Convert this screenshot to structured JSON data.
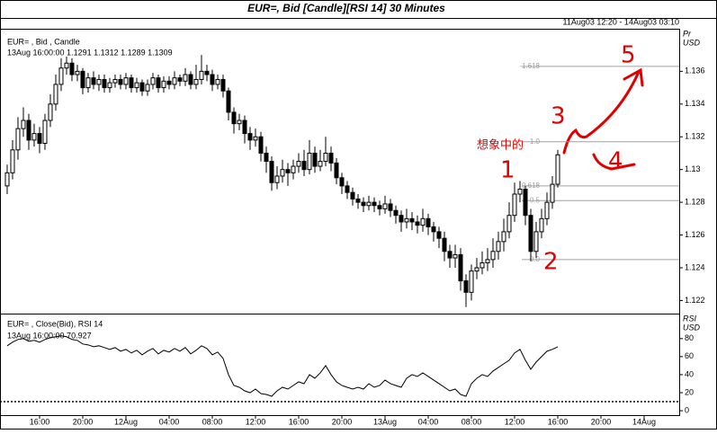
{
  "chart_data": [
    {
      "type": "candlestick",
      "title": "EUR=, Bid [Candle][RSI 14] 30 Minutes",
      "subtitle": "11Aug03 12:20 - 14Aug03 03:10",
      "legend_title": "EUR= , Bid , Candle",
      "legend_values": "13Aug 16:00:00 1.1291 1.1312 1.1289 1.1309",
      "y_label": "Pr",
      "y_unit": "USD",
      "xlim": [
        -1.33,
        124.5
      ],
      "ylim": [
        1.1212,
        1.1386
      ],
      "yticks": [
        1.122,
        1.124,
        1.126,
        1.128,
        1.13,
        1.132,
        1.134,
        1.136
      ],
      "up_color": "#ffffff",
      "down_color": "#000000",
      "open": [
        1.129,
        1.1298,
        1.1312,
        1.1325,
        1.133,
        1.1318,
        1.1322,
        1.1316,
        1.133,
        1.134,
        1.1352,
        1.1362,
        1.1365,
        1.1358,
        1.136,
        1.135,
        1.1356,
        1.1352,
        1.1355,
        1.135,
        1.1353,
        1.1355,
        1.1352,
        1.1356,
        1.135,
        1.1353,
        1.1348,
        1.1352,
        1.1356,
        1.135,
        1.1354,
        1.1352,
        1.1356,
        1.1354,
        1.1358,
        1.1352,
        1.1355,
        1.136,
        1.1358,
        1.1352,
        1.1355,
        1.1348,
        1.1335,
        1.1328,
        1.133,
        1.1322,
        1.1318,
        1.132,
        1.131,
        1.1305,
        1.1292,
        1.1296,
        1.13,
        1.1298,
        1.1302,
        1.1305,
        1.13,
        1.131,
        1.1302,
        1.1305,
        1.131,
        1.1304,
        1.1295,
        1.129,
        1.1286,
        1.1282,
        1.128,
        1.1278,
        1.128,
        1.1278,
        1.1276,
        1.1279,
        1.1275,
        1.1272,
        1.1268,
        1.127,
        1.1268,
        1.1266,
        1.127,
        1.1265,
        1.1262,
        1.1258,
        1.125,
        1.1246,
        1.1248,
        1.1232,
        1.1225,
        1.1238,
        1.124,
        1.1243,
        1.1245,
        1.125,
        1.1256,
        1.1262,
        1.1272,
        1.1285,
        1.1288,
        1.1272,
        1.125,
        1.1262,
        1.127,
        1.128,
        1.1291
      ],
      "high": [
        1.1303,
        1.1318,
        1.1332,
        1.1338,
        1.1334,
        1.1328,
        1.1326,
        1.1334,
        1.1346,
        1.1358,
        1.1368,
        1.1369,
        1.1368,
        1.1364,
        1.1362,
        1.1359,
        1.136,
        1.1358,
        1.1358,
        1.1356,
        1.1358,
        1.1358,
        1.1359,
        1.1358,
        1.1356,
        1.1355,
        1.1355,
        1.1359,
        1.1358,
        1.1357,
        1.1357,
        1.136,
        1.1358,
        1.1362,
        1.136,
        1.1364,
        1.137,
        1.1364,
        1.1361,
        1.1358,
        1.1358,
        1.135,
        1.1338,
        1.1334,
        1.1333,
        1.1326,
        1.1325,
        1.1323,
        1.1314,
        1.1308,
        1.1302,
        1.1306,
        1.1304,
        1.1306,
        1.131,
        1.1312,
        1.1318,
        1.1314,
        1.1312,
        1.132,
        1.1314,
        1.1307,
        1.1298,
        1.1293,
        1.1289,
        1.1285,
        1.1283,
        1.1284,
        1.1283,
        1.1281,
        1.1284,
        1.1282,
        1.1278,
        1.1275,
        1.1276,
        1.1274,
        1.1272,
        1.1276,
        1.1273,
        1.1268,
        1.1265,
        1.1262,
        1.1254,
        1.1254,
        1.1252,
        1.1236,
        1.1242,
        1.1246,
        1.125,
        1.1252,
        1.1258,
        1.1262,
        1.127,
        1.128,
        1.1292,
        1.1293,
        1.129,
        1.1276,
        1.1268,
        1.1276,
        1.1286,
        1.1296,
        1.1312
      ],
      "low": [
        1.1285,
        1.1294,
        1.1306,
        1.132,
        1.1312,
        1.1314,
        1.131,
        1.1312,
        1.1326,
        1.1336,
        1.1348,
        1.1358,
        1.1354,
        1.1354,
        1.1346,
        1.1347,
        1.1349,
        1.1348,
        1.1347,
        1.1347,
        1.135,
        1.1349,
        1.1349,
        1.1347,
        1.1347,
        1.1345,
        1.1345,
        1.1349,
        1.1347,
        1.1347,
        1.1349,
        1.1349,
        1.1351,
        1.1351,
        1.1349,
        1.1349,
        1.1352,
        1.1354,
        1.1348,
        1.1349,
        1.1344,
        1.133,
        1.1322,
        1.1324,
        1.1316,
        1.1312,
        1.1314,
        1.1305,
        1.1298,
        1.1287,
        1.1288,
        1.1292,
        1.129,
        1.1294,
        1.1298,
        1.1296,
        1.1297,
        1.1298,
        1.1299,
        1.1302,
        1.1299,
        1.1291,
        1.1285,
        1.1282,
        1.1278,
        1.1276,
        1.1274,
        1.1275,
        1.1274,
        1.1272,
        1.1273,
        1.1271,
        1.1267,
        1.1262,
        1.1264,
        1.1263,
        1.1261,
        1.1262,
        1.126,
        1.1256,
        1.1252,
        1.1244,
        1.124,
        1.124,
        1.1226,
        1.1216,
        1.122,
        1.1233,
        1.1236,
        1.1238,
        1.124,
        1.1245,
        1.125,
        1.1258,
        1.1268,
        1.128,
        1.1266,
        1.1244,
        1.1246,
        1.1258,
        1.1266,
        1.1276,
        1.1289
      ],
      "close": [
        1.1298,
        1.1312,
        1.1325,
        1.133,
        1.1318,
        1.1322,
        1.1316,
        1.133,
        1.134,
        1.1352,
        1.1362,
        1.1365,
        1.1358,
        1.136,
        1.135,
        1.1356,
        1.1352,
        1.1355,
        1.135,
        1.1353,
        1.1355,
        1.1352,
        1.1356,
        1.135,
        1.1353,
        1.1348,
        1.1352,
        1.1356,
        1.135,
        1.1354,
        1.1352,
        1.1356,
        1.1354,
        1.1358,
        1.1352,
        1.1355,
        1.136,
        1.1358,
        1.1352,
        1.1355,
        1.1348,
        1.1335,
        1.1328,
        1.133,
        1.1322,
        1.1318,
        1.132,
        1.131,
        1.1305,
        1.1292,
        1.1296,
        1.13,
        1.1298,
        1.1302,
        1.1305,
        1.13,
        1.131,
        1.1302,
        1.1305,
        1.131,
        1.1304,
        1.1295,
        1.129,
        1.1286,
        1.1282,
        1.128,
        1.1278,
        1.128,
        1.1278,
        1.1276,
        1.1279,
        1.1275,
        1.1272,
        1.1268,
        1.127,
        1.1268,
        1.1266,
        1.127,
        1.1265,
        1.1262,
        1.1258,
        1.125,
        1.1246,
        1.1248,
        1.1232,
        1.1225,
        1.1238,
        1.124,
        1.1243,
        1.1245,
        1.125,
        1.1256,
        1.1262,
        1.1272,
        1.1285,
        1.1288,
        1.1272,
        1.125,
        1.1262,
        1.127,
        1.128,
        1.1291,
        1.1309
      ],
      "levels": [
        {
          "value": 1.1363,
          "label": "-1.618"
        },
        {
          "value": 1.1317,
          "label": "1.0"
        },
        {
          "value": 1.129,
          "label": "0.618"
        },
        {
          "value": 1.1281,
          "label": "0.5"
        },
        {
          "value": 1.1245,
          "label": "0.0"
        }
      ],
      "level_color": "#a0a0a0",
      "annotations": [
        "想象中的",
        "1",
        "2",
        "3",
        "4",
        "5"
      ],
      "annotation_color": "#e00000"
    },
    {
      "type": "line",
      "legend_title": "EUR= , Close(Bid), RSI 14",
      "legend_values": "13Aug 16:00:00 70.927",
      "y_label": "RSI",
      "y_unit": "USD",
      "xlim": [
        -1.33,
        124.5
      ],
      "ylim": [
        -4.9,
        106.7
      ],
      "yticks": [
        0,
        20,
        40,
        60,
        80
      ],
      "reference_line": 10,
      "color": "#000000",
      "xticks": [
        {
          "value": 6,
          "label": "16:00"
        },
        {
          "value": 14,
          "label": "20:00"
        },
        {
          "value": 22,
          "label": "12Aug"
        },
        {
          "value": 30,
          "label": "04:00"
        },
        {
          "value": 38,
          "label": "08:00"
        },
        {
          "value": 46,
          "label": "12:00"
        },
        {
          "value": 54,
          "label": "16:00"
        },
        {
          "value": 62,
          "label": "20:00"
        },
        {
          "value": 70,
          "label": "13Aug"
        },
        {
          "value": 78,
          "label": "04:00"
        },
        {
          "value": 86,
          "label": "08:00"
        },
        {
          "value": 94,
          "label": "12:00"
        },
        {
          "value": 102,
          "label": "16:00"
        },
        {
          "value": 110,
          "label": "20:00"
        },
        {
          "value": 118,
          "label": "14Aug"
        }
      ],
      "values": [
        72,
        76,
        79,
        80,
        77,
        78,
        76,
        79,
        81,
        82,
        83,
        82,
        79,
        78,
        74,
        73,
        71,
        72,
        70,
        68,
        70,
        66,
        68,
        64,
        67,
        62,
        66,
        69,
        63,
        67,
        65,
        69,
        66,
        70,
        63,
        67,
        72,
        69,
        62,
        65,
        58,
        40,
        28,
        26,
        22,
        20,
        24,
        19,
        18,
        16,
        22,
        26,
        24,
        28,
        32,
        30,
        40,
        36,
        42,
        50,
        40,
        32,
        28,
        26,
        24,
        26,
        24,
        30,
        26,
        28,
        34,
        30,
        28,
        26,
        36,
        40,
        38,
        42,
        38,
        34,
        30,
        26,
        22,
        24,
        18,
        16,
        30,
        36,
        40,
        38,
        44,
        48,
        52,
        56,
        64,
        68,
        56,
        46,
        54,
        60,
        66,
        68,
        70.927
      ]
    }
  ]
}
